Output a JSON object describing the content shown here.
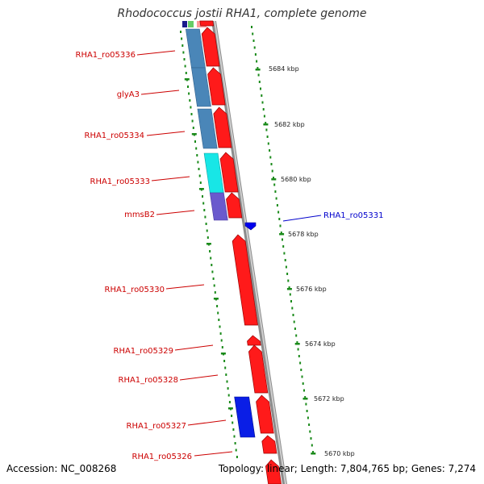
{
  "title": "Rhodococcus jostii RHA1, complete genome",
  "footer": {
    "accession": "Accession: NC_008268",
    "summary": "Topology: linear; Length: 7,804,765 bp; Genes: 7,274"
  },
  "colors": {
    "forward_cds": "#ff1a1a",
    "reverse_gene": "#0000ee",
    "backbone": "#8c8c8c",
    "label_left": "#cc0000",
    "label_right": "#0000cc",
    "ticks": "#1a8a1a",
    "cog_steel": "#4a86b8",
    "cog_cyan": "#18e6e6",
    "cog_purple": "#6a5acd",
    "cog_blue": "#0a1ee6"
  },
  "kbp_ticks": [
    "5684 kbp",
    "5682 kbp",
    "5680 kbp",
    "5678 kbp",
    "5676 kbp",
    "5674 kbp",
    "5672 kbp",
    "5670 kbp"
  ],
  "genes_left": [
    {
      "label": "RHA1_ro05336"
    },
    {
      "label": "glyA3"
    },
    {
      "label": "RHA1_ro05334"
    },
    {
      "label": "RHA1_ro05333"
    },
    {
      "label": "mmsB2"
    },
    {
      "label": "RHA1_ro05330"
    },
    {
      "label": "RHA1_ro05329"
    },
    {
      "label": "RHA1_ro05328"
    },
    {
      "label": "RHA1_ro05327"
    },
    {
      "label": "RHA1_ro05326"
    }
  ],
  "genes_right": [
    {
      "label": "RHA1_ro05331"
    }
  ]
}
